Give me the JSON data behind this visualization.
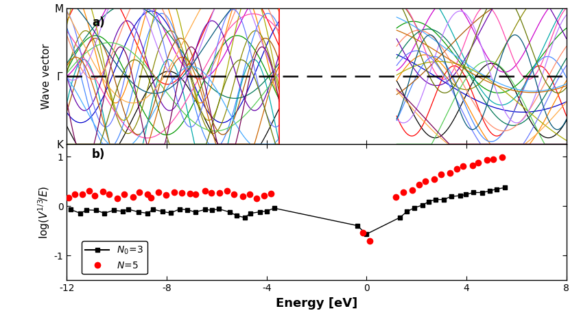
{
  "title_a": "a)",
  "title_b": "b)",
  "xlabel": "Energy [eV]",
  "ylabel_a": "Wave vector",
  "ylabel_b": "log(V^{1/3}/E)",
  "xlim": [
    -12,
    8
  ],
  "ylim_b": [
    -1.5,
    1.25
  ],
  "yticks_b": [
    -1,
    0,
    1
  ],
  "xticks": [
    -12,
    -8,
    -4,
    0,
    4,
    8
  ],
  "gap_start": -3.5,
  "gap_end": 1.2,
  "red_vline_x": -3.5,
  "colors_bands": [
    "#000000",
    "#ff0000",
    "#0000cc",
    "#009900",
    "#ff8800",
    "#cc00cc",
    "#00aaaa",
    "#888800",
    "#ff44aa",
    "#4488ff",
    "#aa5500",
    "#007755",
    "#6600aa",
    "#aaaa00",
    "#ff8866",
    "#6677ff",
    "#55cc55",
    "#ffaa44",
    "#bb77ff",
    "#44aaff",
    "#cc6600",
    "#005577",
    "#770055",
    "#667700"
  ],
  "black_x": [
    -11.8,
    -11.5,
    -11.2,
    -10.8,
    -10.5,
    -10.1,
    -9.8,
    -9.5,
    -9.1,
    -8.8,
    -8.5,
    -8.2,
    -7.8,
    -7.5,
    -7.2,
    -6.9,
    -6.5,
    -6.2,
    -5.9,
    -5.5,
    -5.2,
    -4.9,
    -4.6,
    -4.3,
    -4.0,
    -3.7,
    -0.4,
    0.0,
    1.3,
    1.6,
    1.9,
    2.2,
    2.5,
    2.8,
    3.1,
    3.4,
    3.7,
    4.0,
    4.3,
    4.6,
    4.9,
    5.2,
    5.5
  ],
  "black_y": [
    -0.08,
    -0.13,
    -0.07,
    -0.1,
    -0.15,
    -0.09,
    -0.12,
    -0.07,
    -0.11,
    -0.14,
    -0.06,
    -0.1,
    -0.13,
    -0.07,
    -0.09,
    -0.11,
    -0.08,
    -0.1,
    -0.06,
    -0.12,
    -0.18,
    -0.22,
    -0.14,
    -0.1,
    -0.09,
    -0.06,
    -0.4,
    -0.55,
    -0.22,
    -0.12,
    -0.05,
    0.02,
    0.08,
    0.12,
    0.15,
    0.18,
    0.21,
    0.24,
    0.27,
    0.29,
    0.32,
    0.34,
    0.37
  ],
  "red_x": [
    -11.9,
    -11.7,
    -11.4,
    -11.1,
    -10.9,
    -10.6,
    -10.3,
    -10.0,
    -9.7,
    -9.4,
    -9.1,
    -8.8,
    -8.6,
    -8.3,
    -8.0,
    -7.7,
    -7.4,
    -7.1,
    -6.8,
    -6.5,
    -6.2,
    -5.9,
    -5.6,
    -5.3,
    -5.0,
    -4.7,
    -4.4,
    -4.1,
    -3.8,
    -0.2,
    0.1,
    1.2,
    1.5,
    1.8,
    2.1,
    2.4,
    2.7,
    3.0,
    3.3,
    3.6,
    3.9,
    4.2,
    4.5,
    4.8,
    5.1,
    5.4
  ],
  "red_y": [
    0.18,
    0.25,
    0.22,
    0.28,
    0.2,
    0.3,
    0.24,
    0.18,
    0.26,
    0.2,
    0.3,
    0.25,
    0.18,
    0.28,
    0.22,
    0.3,
    0.25,
    0.28,
    0.22,
    0.3,
    0.24,
    0.28,
    0.32,
    0.26,
    0.2,
    0.24,
    0.18,
    0.22,
    0.25,
    -0.55,
    -0.7,
    0.18,
    0.28,
    0.35,
    0.42,
    0.5,
    0.56,
    0.62,
    0.68,
    0.72,
    0.78,
    0.82,
    0.87,
    0.92,
    0.96,
    1.0
  ]
}
